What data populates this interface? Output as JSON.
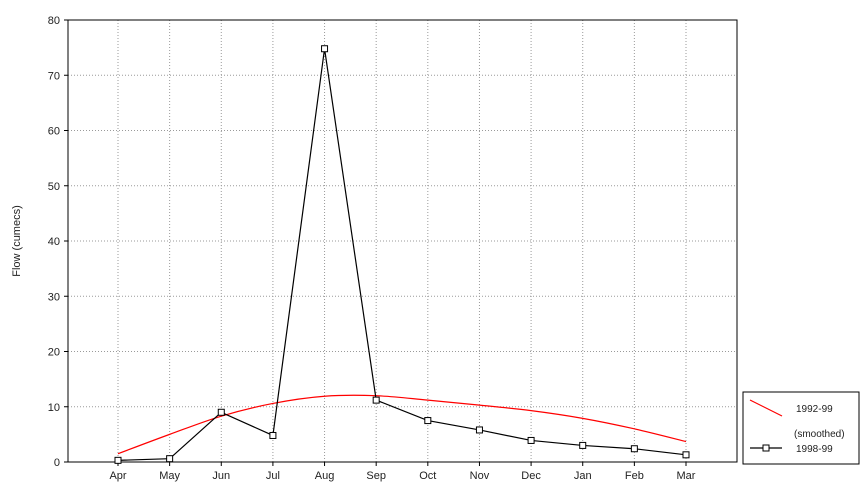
{
  "chart_data": {
    "type": "line",
    "title": "",
    "xlabel": "",
    "ylabel": "Flow (cumecs)",
    "categories": [
      "Apr",
      "May",
      "Jun",
      "Jul",
      "Aug",
      "Sep",
      "Oct",
      "Nov",
      "Dec",
      "Jan",
      "Feb",
      "Mar"
    ],
    "ylim": [
      0,
      80
    ],
    "yticks": [
      "0",
      "10",
      "20",
      "30",
      "40",
      "50",
      "60",
      "70",
      "80"
    ],
    "grid": true,
    "legend_position": "right",
    "series": [
      {
        "name": "1992-99 (smoothed)",
        "legend_line1": "1992-99",
        "legend_line2": "(smoothed)",
        "color": "#ff0000",
        "marker": "none",
        "values": [
          1.5,
          5.0,
          8.3,
          10.6,
          11.9,
          12.0,
          11.2,
          10.3,
          9.3,
          7.9,
          6.0,
          3.7
        ]
      },
      {
        "name": "1998-99",
        "legend_line1": "1998-99",
        "color": "#000000",
        "marker": "square",
        "values": [
          0.3,
          0.6,
          9.0,
          4.8,
          74.8,
          11.2,
          7.5,
          5.8,
          3.9,
          3.0,
          2.4,
          1.3
        ]
      }
    ]
  }
}
